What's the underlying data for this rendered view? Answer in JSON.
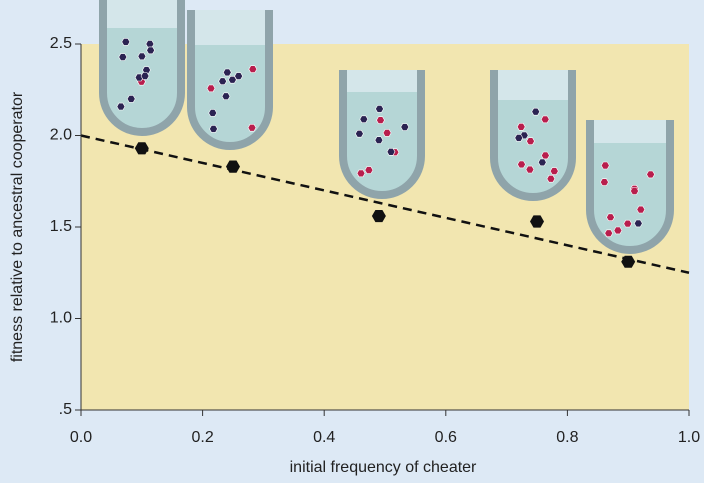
{
  "chart_data": {
    "type": "scatter",
    "xlabel": "initial frequency of cheater",
    "ylabel": "fitness relative to ancestral cooperator",
    "x": [
      0.1,
      0.25,
      0.49,
      0.75,
      0.9
    ],
    "values": [
      1.93,
      1.83,
      1.56,
      1.53,
      1.31
    ],
    "color": "#111111",
    "trend": {
      "x": [
        0,
        1
      ],
      "y": [
        2.0,
        1.25
      ],
      "color": "#111111",
      "dash": true
    },
    "xlim": [
      0,
      1
    ],
    "ylim": [
      0.5,
      2.5
    ],
    "xticks": [
      {
        "value": 0,
        "label": "0.0"
      },
      0.2,
      0.4,
      0.6,
      0.8,
      {
        "value": 1,
        "label": "1.0"
      }
    ],
    "yticks": [
      {
        "value": 0.5,
        "label": ".5"
      },
      {
        "value": 1,
        "label": "1.0"
      },
      1.5,
      {
        "value": 2,
        "label": "2.0"
      },
      2.5
    ]
  }
}
